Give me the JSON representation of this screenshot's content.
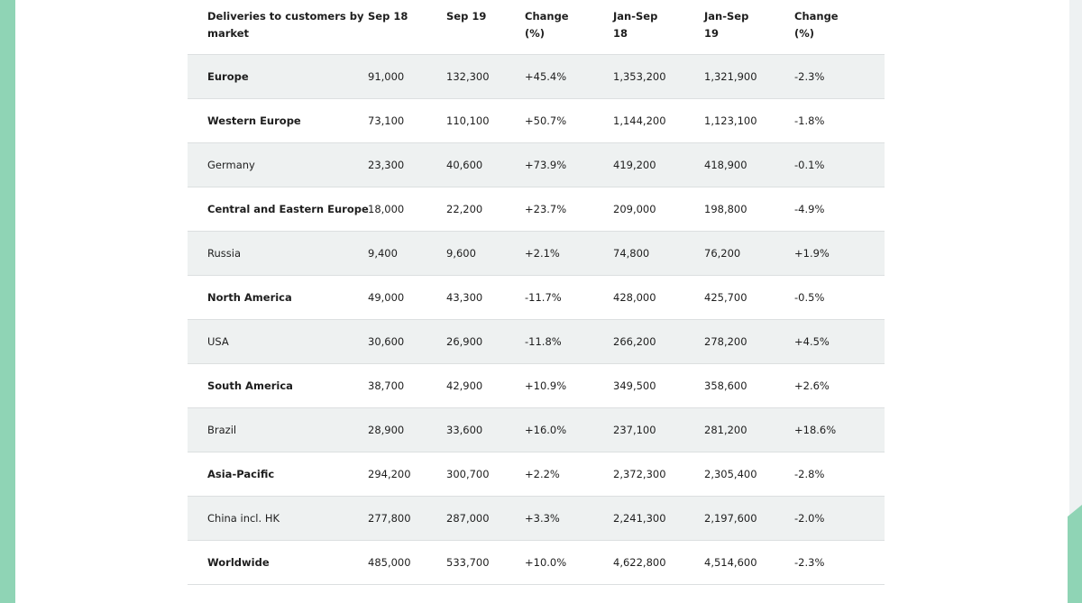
{
  "table": {
    "headers": [
      "Deliveries to customers by\nmarket",
      "Sep 18",
      "Sep 19",
      "Change\n(%)",
      "Jan-Sep\n18",
      "Jan-Sep\n19",
      "Change\n(%)"
    ],
    "rows": [
      {
        "market": "Europe",
        "sep18": "91,000",
        "sep19": "132,300",
        "change": "+45.4%",
        "jansep18": "1,353,200",
        "jansep19": "1,321,900",
        "change_ytd": "-2.3%"
      },
      {
        "market": "Western Europe",
        "sep18": "73,100",
        "sep19": "110,100",
        "change": "+50.7%",
        "jansep18": "1,144,200",
        "jansep19": "1,123,100",
        "change_ytd": "-1.8%"
      },
      {
        "market": "Germany",
        "sep18": "23,300",
        "sep19": "40,600",
        "change": "+73.9%",
        "jansep18": "419,200",
        "jansep19": "418,900",
        "change_ytd": "-0.1%"
      },
      {
        "market": "Central and Eastern Europe",
        "sep18": "18,000",
        "sep19": "22,200",
        "change": "+23.7%",
        "jansep18": "209,000",
        "jansep19": "198,800",
        "change_ytd": "-4.9%"
      },
      {
        "market": "Russia",
        "sep18": "9,400",
        "sep19": "9,600",
        "change": "+2.1%",
        "jansep18": "74,800",
        "jansep19": "76,200",
        "change_ytd": "+1.9%"
      },
      {
        "market": "North America",
        "sep18": "49,000",
        "sep19": "43,300",
        "change": "-11.7%",
        "jansep18": "428,000",
        "jansep19": "425,700",
        "change_ytd": "-0.5%"
      },
      {
        "market": "USA",
        "sep18": "30,600",
        "sep19": "26,900",
        "change": "-11.8%",
        "jansep18": "266,200",
        "jansep19": "278,200",
        "change_ytd": "+4.5%"
      },
      {
        "market": "South America",
        "sep18": "38,700",
        "sep19": "42,900",
        "change": "+10.9%",
        "jansep18": "349,500",
        "jansep19": "358,600",
        "change_ytd": "+2.6%"
      },
      {
        "market": "Brazil",
        "sep18": "28,900",
        "sep19": "33,600",
        "change": "+16.0%",
        "jansep18": "237,100",
        "jansep19": "281,200",
        "change_ytd": "+18.6%"
      },
      {
        "market": "Asia-Pacific",
        "sep18": "294,200",
        "sep19": "300,700",
        "change": "+2.2%",
        "jansep18": "2,372,300",
        "jansep19": "2,305,400",
        "change_ytd": "-2.8%"
      },
      {
        "market": "China incl. HK",
        "sep18": "277,800",
        "sep19": "287,000",
        "change": "+3.3%",
        "jansep18": "2,241,300",
        "jansep19": "2,197,600",
        "change_ytd": "-2.0%"
      },
      {
        "market": "Worldwide",
        "sep18": "485,000",
        "sep19": "533,700",
        "change": "+10.0%",
        "jansep18": "4,622,800",
        "jansep19": "4,514,600",
        "change_ytd": "-2.3%"
      }
    ]
  },
  "colors": {
    "accent": "#8fd4b5",
    "row_shade": "#eef1f1"
  }
}
